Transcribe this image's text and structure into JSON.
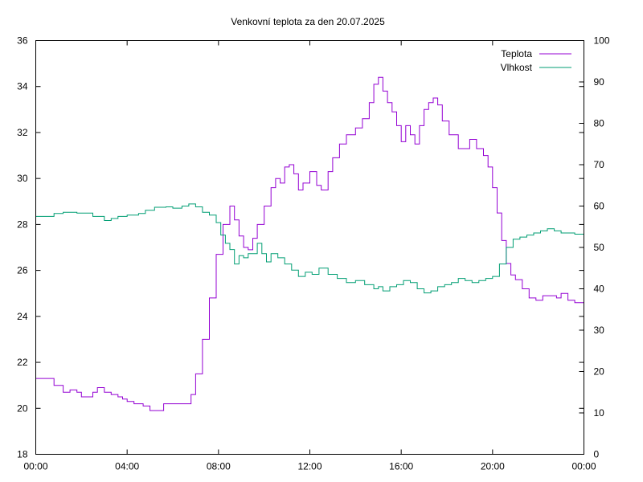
{
  "chart_data": {
    "type": "line",
    "title": "Venkovní teplota za den 20.07.2025",
    "xlabel": "",
    "ylabel": "",
    "y2label": "",
    "x_ticks": [
      "00:00",
      "04:00",
      "08:00",
      "12:00",
      "16:00",
      "20:00",
      "00:00"
    ],
    "xlim_hours": [
      0,
      24
    ],
    "ylim": [
      18,
      36
    ],
    "y_ticks": [
      18,
      20,
      22,
      24,
      26,
      28,
      30,
      32,
      34,
      36
    ],
    "y2lim": [
      0,
      100
    ],
    "y2_ticks": [
      0,
      10,
      20,
      30,
      40,
      50,
      60,
      70,
      80,
      90,
      100
    ],
    "grid": false,
    "legend_position": "top-right",
    "series": [
      {
        "name": "Teplota",
        "axis": "left",
        "color": "#9400d3",
        "x": [
          0,
          0.5,
          0.8,
          1.2,
          1.5,
          1.8,
          2.0,
          2.1,
          2.5,
          2.7,
          3.0,
          3.3,
          3.6,
          3.8,
          4.0,
          4.3,
          4.7,
          5.0,
          5.3,
          5.6,
          6.0,
          6.5,
          6.8,
          7.0,
          7.3,
          7.6,
          7.9,
          8.2,
          8.5,
          8.7,
          8.9,
          9.1,
          9.3,
          9.5,
          9.7,
          10.0,
          10.3,
          10.5,
          10.7,
          10.9,
          11.1,
          11.3,
          11.5,
          11.7,
          12.0,
          12.3,
          12.5,
          12.8,
          13.0,
          13.3,
          13.6,
          14.0,
          14.3,
          14.6,
          14.8,
          15.0,
          15.2,
          15.4,
          15.6,
          15.8,
          16.0,
          16.2,
          16.4,
          16.6,
          16.8,
          17.0,
          17.2,
          17.4,
          17.6,
          17.8,
          18.1,
          18.5,
          18.8,
          19.0,
          19.3,
          19.6,
          19.8,
          20.0,
          20.2,
          20.4,
          20.6,
          20.8,
          21.0,
          21.3,
          21.6,
          21.9,
          22.2,
          22.5,
          22.8,
          23.0,
          23.3,
          23.6,
          24.0
        ],
        "y": [
          21.3,
          21.3,
          21.0,
          20.7,
          20.8,
          20.7,
          20.5,
          20.5,
          20.7,
          20.9,
          20.7,
          20.6,
          20.5,
          20.4,
          20.3,
          20.2,
          20.1,
          19.9,
          19.9,
          20.2,
          20.2,
          20.2,
          20.6,
          21.5,
          23.0,
          24.8,
          26.7,
          28.0,
          28.8,
          28.2,
          27.5,
          27.0,
          26.9,
          27.4,
          28.0,
          28.8,
          29.6,
          30.0,
          29.8,
          30.5,
          30.6,
          30.2,
          29.5,
          29.8,
          30.3,
          29.7,
          29.5,
          30.3,
          30.9,
          31.5,
          31.9,
          32.2,
          32.6,
          33.3,
          34.1,
          34.4,
          33.8,
          33.3,
          32.9,
          32.3,
          31.6,
          32.3,
          31.9,
          31.5,
          32.3,
          33.0,
          33.3,
          33.5,
          33.2,
          32.5,
          31.9,
          31.3,
          31.3,
          31.7,
          31.3,
          31.0,
          30.5,
          29.6,
          28.5,
          27.3,
          26.3,
          25.8,
          25.6,
          25.2,
          24.8,
          24.7,
          24.9,
          24.9,
          24.8,
          25.0,
          24.7,
          24.6,
          24.6
        ]
      },
      {
        "name": "Vlhkost",
        "axis": "right",
        "color": "#009e73",
        "x": [
          0,
          0.5,
          0.8,
          1.2,
          1.8,
          2.2,
          2.5,
          3.0,
          3.3,
          3.6,
          4.0,
          4.5,
          4.8,
          5.2,
          5.7,
          6.0,
          6.4,
          6.7,
          7.0,
          7.3,
          7.6,
          7.9,
          8.1,
          8.3,
          8.5,
          8.7,
          8.9,
          9.1,
          9.3,
          9.5,
          9.7,
          9.9,
          10.1,
          10.3,
          10.6,
          10.9,
          11.2,
          11.5,
          11.8,
          12.1,
          12.4,
          12.8,
          13.2,
          13.6,
          14.0,
          14.4,
          14.8,
          15.0,
          15.2,
          15.5,
          15.8,
          16.1,
          16.4,
          16.7,
          17.0,
          17.3,
          17.6,
          17.9,
          18.2,
          18.5,
          18.8,
          19.1,
          19.4,
          19.7,
          20.0,
          20.3,
          20.6,
          20.9,
          21.2,
          21.5,
          21.8,
          22.1,
          22.4,
          22.7,
          23.0,
          23.3,
          23.6,
          24.0
        ],
        "y": [
          57.5,
          57.5,
          58.2,
          58.5,
          58.3,
          58.3,
          57.5,
          56.5,
          57.0,
          57.5,
          57.8,
          58.2,
          59.0,
          59.7,
          59.8,
          59.5,
          60.0,
          60.5,
          59.8,
          58.5,
          57.8,
          56.0,
          53.0,
          51.0,
          49.5,
          46.0,
          48.0,
          47.5,
          48.5,
          48.5,
          51.0,
          48.5,
          46.5,
          48.5,
          47.5,
          46.0,
          44.5,
          43.0,
          44.0,
          43.5,
          45.0,
          43.5,
          42.5,
          41.5,
          42.0,
          41.0,
          40.0,
          40.5,
          39.5,
          40.5,
          41.0,
          42.0,
          41.5,
          40.0,
          39.0,
          39.5,
          40.5,
          41.0,
          41.5,
          42.5,
          42.0,
          41.5,
          42.0,
          42.5,
          43.0,
          46.0,
          50.0,
          52.0,
          52.5,
          53.0,
          53.5,
          54.0,
          54.5,
          54.0,
          53.5,
          53.5,
          53.2,
          52.8
        ]
      }
    ]
  }
}
